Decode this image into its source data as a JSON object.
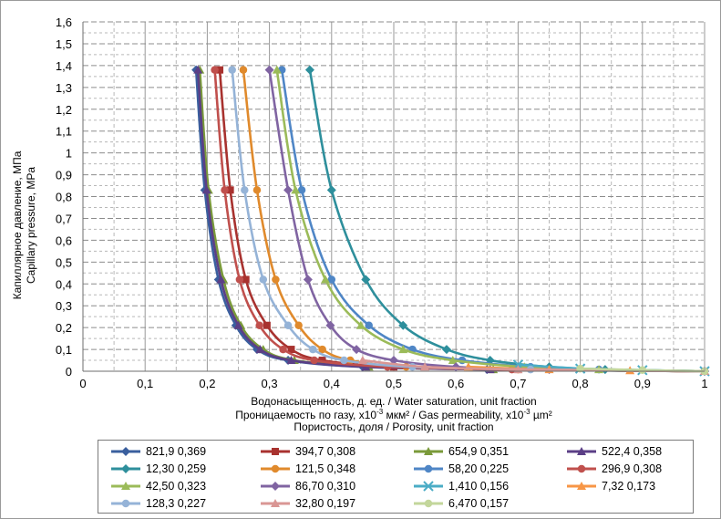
{
  "chart_data": {
    "type": "line",
    "title": "",
    "xlabel": "Водонасыщенность, д. ед. / Water saturation, unit fraction",
    "xlabel_line2": {
      "a": "Проницаемость по газу, x10",
      "b": "-3",
      "c": " мкм² / Gas permeability, x10",
      "d": "-3",
      "e": " µm²"
    },
    "xlabel_line3": "Пористость, доля / Porosity, unit fraction",
    "ylabel": [
      "Капиллярное давление, МПа",
      "Capillary pressure, MPa"
    ],
    "xlim": [
      0,
      1
    ],
    "ylim": [
      0,
      1.6
    ],
    "grid": true,
    "x_ticks": [
      "0",
      "0,1",
      "0,2",
      "0,3",
      "0,4",
      "0,5",
      "0,6",
      "0,7",
      "0,8",
      "0,9",
      "1"
    ],
    "y_ticks": [
      "0",
      "0,1",
      "0,2",
      "0,3",
      "0,4",
      "0,5",
      "0,6",
      "0,7",
      "0,8",
      "0,9",
      "1",
      "1,1",
      "1,2",
      "1,3",
      "1,4",
      "1,5",
      "1,6"
    ],
    "legend_position": "bottom",
    "series": [
      {
        "name": "821,9 0,369",
        "color": "#3a5f9e",
        "marker": "diamond",
        "points": [
          [
            0.182,
            1.38
          ],
          [
            0.196,
            0.83
          ],
          [
            0.218,
            0.42
          ],
          [
            0.246,
            0.21
          ],
          [
            0.28,
            0.1
          ],
          [
            0.33,
            0.05
          ],
          [
            0.45,
            0.02
          ],
          [
            0.65,
            0.008
          ],
          [
            1.0,
            0
          ]
        ]
      },
      {
        "name": "394,7 0,308",
        "color": "#a8322f",
        "marker": "square",
        "points": [
          [
            0.22,
            1.38
          ],
          [
            0.237,
            0.83
          ],
          [
            0.262,
            0.42
          ],
          [
            0.296,
            0.21
          ],
          [
            0.335,
            0.1
          ],
          [
            0.385,
            0.05
          ],
          [
            0.5,
            0.02
          ],
          [
            0.7,
            0.008
          ],
          [
            1.0,
            0
          ]
        ]
      },
      {
        "name": "654,9 0,351",
        "color": "#7a9a3a",
        "marker": "triangle",
        "points": [
          [
            0.188,
            1.38
          ],
          [
            0.202,
            0.83
          ],
          [
            0.226,
            0.42
          ],
          [
            0.254,
            0.21
          ],
          [
            0.29,
            0.1
          ],
          [
            0.34,
            0.05
          ],
          [
            0.46,
            0.02
          ],
          [
            0.66,
            0.008
          ],
          [
            1.0,
            0
          ]
        ]
      },
      {
        "name": "522,4 0,358",
        "color": "#5b3f86",
        "marker": "triangle",
        "points": [
          [
            0.185,
            1.38
          ],
          [
            0.199,
            0.83
          ],
          [
            0.222,
            0.42
          ],
          [
            0.25,
            0.21
          ],
          [
            0.285,
            0.1
          ],
          [
            0.335,
            0.05
          ],
          [
            0.455,
            0.02
          ],
          [
            0.655,
            0.008
          ],
          [
            1.0,
            0
          ]
        ]
      },
      {
        "name": "12,30 0,259",
        "color": "#2e8f9c",
        "marker": "diamond",
        "points": [
          [
            0.365,
            1.38
          ],
          [
            0.4,
            0.83
          ],
          [
            0.455,
            0.42
          ],
          [
            0.515,
            0.21
          ],
          [
            0.585,
            0.1
          ],
          [
            0.655,
            0.05
          ],
          [
            0.75,
            0.02
          ],
          [
            0.84,
            0.008
          ],
          [
            1.0,
            0
          ]
        ]
      },
      {
        "name": "121,5 0,348",
        "color": "#e08a2c",
        "marker": "circle",
        "points": [
          [
            0.258,
            1.38
          ],
          [
            0.28,
            0.83
          ],
          [
            0.31,
            0.42
          ],
          [
            0.347,
            0.21
          ],
          [
            0.385,
            0.1
          ],
          [
            0.43,
            0.05
          ],
          [
            0.52,
            0.02
          ],
          [
            0.7,
            0.008
          ],
          [
            1.0,
            0
          ]
        ]
      },
      {
        "name": "58,20 0,225",
        "color": "#4f86c6",
        "marker": "circle",
        "points": [
          [
            0.32,
            1.38
          ],
          [
            0.352,
            0.83
          ],
          [
            0.4,
            0.42
          ],
          [
            0.46,
            0.21
          ],
          [
            0.53,
            0.1
          ],
          [
            0.61,
            0.05
          ],
          [
            0.72,
            0.02
          ],
          [
            0.83,
            0.008
          ],
          [
            1.0,
            0
          ]
        ]
      },
      {
        "name": "296,9 0,308",
        "color": "#c0504d",
        "marker": "circle",
        "points": [
          [
            0.212,
            1.38
          ],
          [
            0.228,
            0.83
          ],
          [
            0.252,
            0.42
          ],
          [
            0.284,
            0.21
          ],
          [
            0.322,
            0.1
          ],
          [
            0.372,
            0.05
          ],
          [
            0.49,
            0.02
          ],
          [
            0.69,
            0.008
          ],
          [
            1.0,
            0
          ]
        ]
      },
      {
        "name": "42,50 0,323",
        "color": "#9bbb59",
        "marker": "triangle",
        "points": [
          [
            0.312,
            1.38
          ],
          [
            0.342,
            0.83
          ],
          [
            0.39,
            0.42
          ],
          [
            0.447,
            0.21
          ],
          [
            0.515,
            0.1
          ],
          [
            0.595,
            0.05
          ],
          [
            0.71,
            0.02
          ],
          [
            0.83,
            0.008
          ],
          [
            1.0,
            0
          ]
        ]
      },
      {
        "name": "86,70 0,310",
        "color": "#8064a2",
        "marker": "diamond",
        "points": [
          [
            0.3,
            1.38
          ],
          [
            0.33,
            0.83
          ],
          [
            0.362,
            0.42
          ],
          [
            0.398,
            0.21
          ],
          [
            0.44,
            0.1
          ],
          [
            0.5,
            0.05
          ],
          [
            0.6,
            0.02
          ],
          [
            0.75,
            0.008
          ],
          [
            1.0,
            0
          ]
        ]
      },
      {
        "name": "1,410 0,156",
        "color": "#4bacc6",
        "marker": "cross",
        "points": [
          [
            0.7,
            0.03
          ],
          [
            0.8,
            0.012
          ],
          [
            0.9,
            0.005
          ],
          [
            1.0,
            0
          ]
        ]
      },
      {
        "name": "7,32 0,173",
        "color": "#f79646",
        "marker": "triangle",
        "points": [
          [
            0.62,
            0.02
          ],
          [
            0.75,
            0.008
          ],
          [
            0.88,
            0.003
          ],
          [
            1.0,
            0
          ]
        ]
      },
      {
        "name": "128,3 0,227",
        "color": "#95b3d7",
        "marker": "circle",
        "points": [
          [
            0.24,
            1.38
          ],
          [
            0.26,
            0.83
          ],
          [
            0.29,
            0.42
          ],
          [
            0.33,
            0.21
          ],
          [
            0.37,
            0.1
          ],
          [
            0.42,
            0.05
          ],
          [
            0.53,
            0.02
          ],
          [
            0.72,
            0.008
          ],
          [
            1.0,
            0
          ]
        ]
      },
      {
        "name": "32,80 0,197",
        "color": "#d99694",
        "marker": "triangle",
        "points": [
          [
            0.45,
            0.05
          ],
          [
            0.55,
            0.02
          ],
          [
            0.7,
            0.008
          ],
          [
            1.0,
            0
          ]
        ]
      },
      {
        "name": "6,470 0,157",
        "color": "#c3d69b",
        "marker": "circle",
        "points": [
          [
            0.8,
            0.012
          ],
          [
            0.9,
            0.005
          ],
          [
            1.0,
            0
          ]
        ]
      }
    ]
  }
}
